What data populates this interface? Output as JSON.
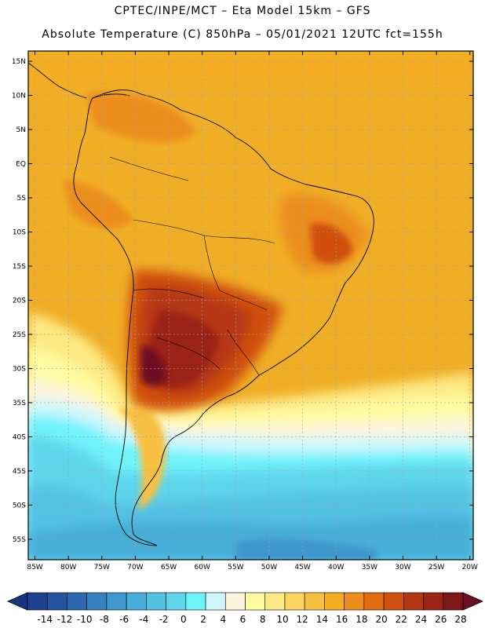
{
  "header": {
    "line1": "CPTEC/INPE/MCT –  Eta Model 15km – GFS",
    "line2": "Absolute Temperature (C) 850hPa – 05/01/2021 12UTC fct=155h"
  },
  "map": {
    "lat_labels": [
      "15N",
      "10N",
      "5N",
      "EQ",
      "5S",
      "10S",
      "15S",
      "20S",
      "25S",
      "30S",
      "35S",
      "40S",
      "45S",
      "50S",
      "55S"
    ],
    "lon_labels": [
      "85W",
      "80W",
      "75W",
      "70W",
      "65W",
      "60W",
      "55W",
      "50W",
      "45W",
      "40W",
      "35W",
      "30W",
      "25W",
      "20W"
    ],
    "lat_values": [
      15,
      10,
      5,
      0,
      -5,
      -10,
      -15,
      -20,
      -25,
      -30,
      -35,
      -40,
      -45,
      -50,
      -55
    ],
    "lon_values": [
      -85,
      -80,
      -75,
      -70,
      -65,
      -60,
      -55,
      -50,
      -45,
      -40,
      -35,
      -30,
      -25,
      -20
    ],
    "lat_range": [
      -58,
      16.5
    ],
    "lon_range": [
      -86,
      -19.5
    ],
    "background_color": "#f0ae26"
  },
  "colorbar": {
    "ticks": [
      "-14",
      "-12",
      "-10",
      "-8",
      "-6",
      "-4",
      "-2",
      "0",
      "2",
      "4",
      "6",
      "8",
      "10",
      "12",
      "14",
      "16",
      "18",
      "20",
      "22",
      "24",
      "26",
      "28"
    ],
    "colors": [
      "#1f3f8f",
      "#2553a0",
      "#2c68b0",
      "#3481bf",
      "#3e97cd",
      "#46aed8",
      "#52c2e3",
      "#5fd5ec",
      "#6ff3fb",
      "#cdf6fb",
      "#fdf5dd",
      "#fefba0",
      "#fde983",
      "#fcd45f",
      "#f8c041",
      "#f4ad20",
      "#ec8e1d",
      "#e26a10",
      "#d0500f",
      "#b53712",
      "#9b2416",
      "#7c1816"
    ],
    "min_color": "#163580",
    "max_color": "#6e0f24"
  }
}
